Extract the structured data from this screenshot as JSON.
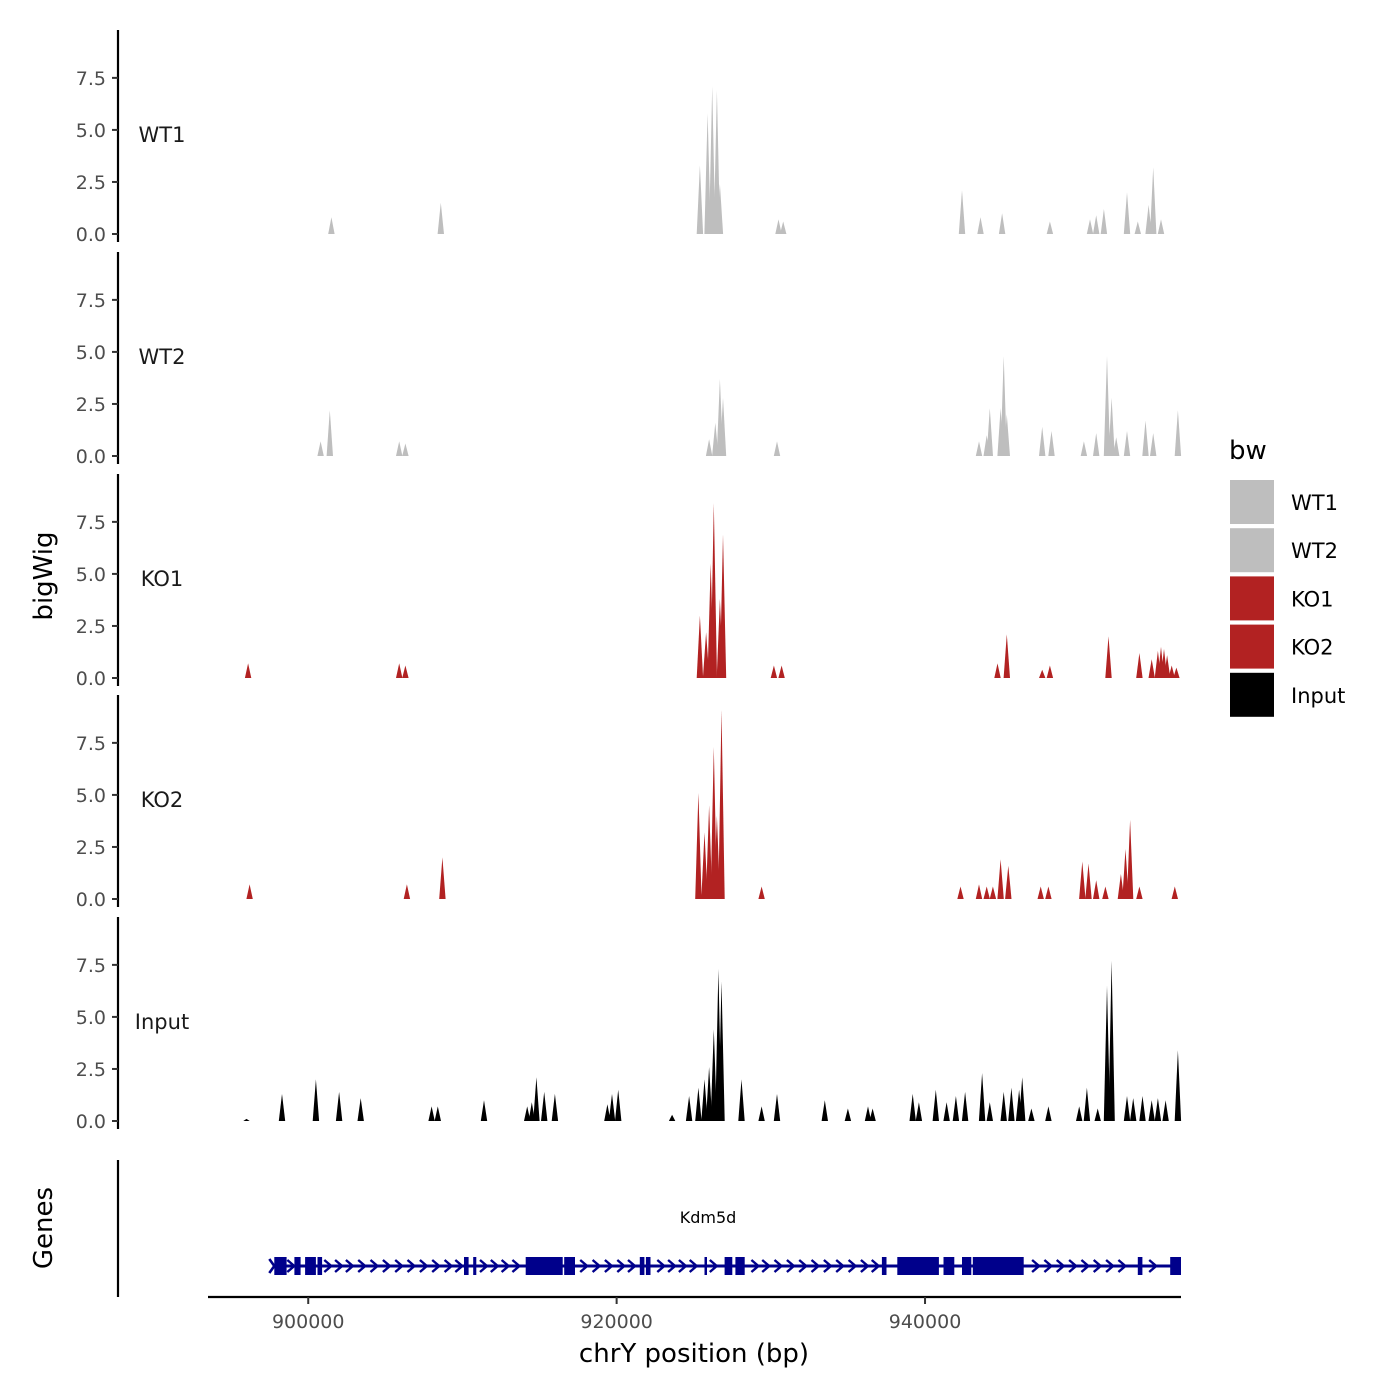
{
  "chart_data": {
    "type": "area",
    "xlabel": "chrY position (bp)",
    "ylabel": "bigWig",
    "genes_label": "Genes",
    "x_range": [
      893500,
      956600
    ],
    "x_ticks": [
      900000,
      920000,
      940000
    ],
    "x_tick_labels": [
      "900000",
      "920000",
      "940000"
    ],
    "y_range": [
      0,
      9.8
    ],
    "y_ticks": [
      0,
      2.5,
      5,
      7.5
    ],
    "y_tick_labels": [
      "0.0",
      "2.5",
      "5.0",
      "7.5"
    ],
    "legend": {
      "title": "bw",
      "entries": [
        {
          "label": "WT1",
          "color": "#BEBEBE"
        },
        {
          "label": "WT2",
          "color": "#BEBEBE"
        },
        {
          "label": "KO1",
          "color": "#B22222"
        },
        {
          "label": "KO2",
          "color": "#B22222"
        },
        {
          "label": "Input",
          "color": "#000000"
        }
      ]
    },
    "series": [
      {
        "name": "WT1",
        "color": "#BEBEBE",
        "peaks": [
          [
            901500,
            0.8
          ],
          [
            908600,
            1.5
          ],
          [
            925400,
            3.3
          ],
          [
            925900,
            5.8
          ],
          [
            926200,
            7.1
          ],
          [
            926500,
            6.9
          ],
          [
            926700,
            2.4
          ],
          [
            930500,
            0.7
          ],
          [
            930800,
            0.6
          ],
          [
            942400,
            2.1
          ],
          [
            943600,
            0.8
          ],
          [
            945000,
            1.0
          ],
          [
            948100,
            0.6
          ],
          [
            950700,
            0.7
          ],
          [
            951100,
            0.9
          ],
          [
            951600,
            1.2
          ],
          [
            953100,
            2.0
          ],
          [
            953800,
            0.6
          ],
          [
            954500,
            1.4
          ],
          [
            954800,
            3.2
          ],
          [
            955300,
            0.7
          ]
        ]
      },
      {
        "name": "WT2",
        "color": "#BEBEBE",
        "peaks": [
          [
            900800,
            0.7
          ],
          [
            901400,
            2.2
          ],
          [
            905900,
            0.7
          ],
          [
            906300,
            0.6
          ],
          [
            926000,
            0.8
          ],
          [
            926400,
            1.6
          ],
          [
            926700,
            3.7
          ],
          [
            926900,
            2.8
          ],
          [
            930400,
            0.7
          ],
          [
            943500,
            0.7
          ],
          [
            944000,
            1.0
          ],
          [
            944200,
            2.3
          ],
          [
            944900,
            2.3
          ],
          [
            945100,
            4.8
          ],
          [
            945300,
            2.0
          ],
          [
            947600,
            1.4
          ],
          [
            948200,
            1.2
          ],
          [
            950300,
            0.7
          ],
          [
            951100,
            1.1
          ],
          [
            951800,
            4.8
          ],
          [
            952100,
            2.8
          ],
          [
            952400,
            0.9
          ],
          [
            953100,
            1.2
          ],
          [
            954300,
            1.7
          ],
          [
            954800,
            1.1
          ],
          [
            956400,
            2.2
          ]
        ]
      },
      {
        "name": "KO1",
        "color": "#B22222",
        "peaks": [
          [
            896100,
            0.7
          ],
          [
            905900,
            0.7
          ],
          [
            906300,
            0.6
          ],
          [
            925400,
            3.0
          ],
          [
            925800,
            2.2
          ],
          [
            926100,
            5.5
          ],
          [
            926300,
            8.4
          ],
          [
            926700,
            3.8
          ],
          [
            926900,
            6.9
          ],
          [
            930200,
            0.6
          ],
          [
            930700,
            0.6
          ],
          [
            944700,
            0.7
          ],
          [
            945300,
            2.1
          ],
          [
            947600,
            0.4
          ],
          [
            948100,
            0.6
          ],
          [
            951900,
            2.0
          ],
          [
            953900,
            1.2
          ],
          [
            954700,
            0.9
          ],
          [
            955100,
            1.3
          ],
          [
            955300,
            1.5
          ],
          [
            955500,
            1.4
          ],
          [
            955700,
            1.1
          ],
          [
            956000,
            0.6
          ],
          [
            956300,
            0.5
          ]
        ]
      },
      {
        "name": "KO2",
        "color": "#B22222",
        "peaks": [
          [
            896200,
            0.7
          ],
          [
            906400,
            0.7
          ],
          [
            908700,
            2.0
          ],
          [
            925300,
            5.1
          ],
          [
            925700,
            3.2
          ],
          [
            926000,
            4.5
          ],
          [
            926300,
            7.3
          ],
          [
            926500,
            4.0
          ],
          [
            926800,
            9.1
          ],
          [
            929400,
            0.6
          ],
          [
            942300,
            0.6
          ],
          [
            943500,
            0.7
          ],
          [
            944000,
            0.6
          ],
          [
            944400,
            0.6
          ],
          [
            944900,
            1.9
          ],
          [
            945400,
            1.6
          ],
          [
            947500,
            0.6
          ],
          [
            948000,
            0.6
          ],
          [
            950200,
            1.8
          ],
          [
            950600,
            1.7
          ],
          [
            951100,
            0.9
          ],
          [
            951700,
            0.6
          ],
          [
            952700,
            1.2
          ],
          [
            953000,
            2.4
          ],
          [
            953300,
            3.8
          ],
          [
            953900,
            0.6
          ],
          [
            956200,
            0.6
          ]
        ]
      },
      {
        "name": "Input",
        "color": "#000000",
        "peaks": [
          [
            896000,
            0.1
          ],
          [
            898300,
            1.3
          ],
          [
            900500,
            2.0
          ],
          [
            902000,
            1.4
          ],
          [
            903400,
            1.1
          ],
          [
            908000,
            0.7
          ],
          [
            908400,
            0.7
          ],
          [
            911400,
            1.0
          ],
          [
            914200,
            0.7
          ],
          [
            914500,
            0.9
          ],
          [
            914800,
            2.1
          ],
          [
            915300,
            1.4
          ],
          [
            916000,
            1.3
          ],
          [
            919400,
            0.8
          ],
          [
            919700,
            1.3
          ],
          [
            920100,
            1.5
          ],
          [
            923600,
            0.3
          ],
          [
            924700,
            1.2
          ],
          [
            925300,
            1.6
          ],
          [
            925700,
            2.0
          ],
          [
            926000,
            2.6
          ],
          [
            926300,
            4.4
          ],
          [
            926600,
            7.3
          ],
          [
            926800,
            6.7
          ],
          [
            928100,
            2.0
          ],
          [
            929400,
            0.7
          ],
          [
            930400,
            1.3
          ],
          [
            933500,
            1.0
          ],
          [
            935000,
            0.6
          ],
          [
            936300,
            0.7
          ],
          [
            936600,
            0.6
          ],
          [
            939200,
            1.3
          ],
          [
            939600,
            0.9
          ],
          [
            940700,
            1.5
          ],
          [
            941400,
            0.9
          ],
          [
            942000,
            1.2
          ],
          [
            942600,
            1.4
          ],
          [
            943700,
            2.3
          ],
          [
            944200,
            0.9
          ],
          [
            945100,
            1.4
          ],
          [
            945600,
            1.6
          ],
          [
            946100,
            1.5
          ],
          [
            946300,
            2.1
          ],
          [
            946900,
            0.6
          ],
          [
            948000,
            0.7
          ],
          [
            950000,
            0.7
          ],
          [
            950500,
            1.6
          ],
          [
            951200,
            0.6
          ],
          [
            951800,
            6.5
          ],
          [
            952100,
            7.7
          ],
          [
            953100,
            1.2
          ],
          [
            953500,
            1.1
          ],
          [
            954100,
            1.2
          ],
          [
            954700,
            1.0
          ],
          [
            955100,
            1.1
          ],
          [
            955600,
            1.0
          ],
          [
            956400,
            3.4
          ]
        ]
      }
    ],
    "gene": {
      "name": "Kdm5d",
      "start": 897800,
      "end": 956600,
      "color": "#00008B",
      "exons": [
        [
          897800,
          898600
        ],
        [
          899100,
          899500
        ],
        [
          899800,
          900500
        ],
        [
          900600,
          900900
        ],
        [
          910100,
          910400
        ],
        [
          910700,
          910900
        ],
        [
          914100,
          916500
        ],
        [
          916600,
          917300
        ],
        [
          921500,
          921800
        ],
        [
          921900,
          922200
        ],
        [
          925700,
          925800
        ],
        [
          927000,
          927500
        ],
        [
          927700,
          928300
        ],
        [
          937200,
          937500
        ],
        [
          938200,
          940900
        ],
        [
          941200,
          941900
        ],
        [
          942400,
          943000
        ],
        [
          943100,
          946400
        ],
        [
          953800,
          954100
        ],
        [
          955900,
          956600
        ]
      ],
      "arrows": [
        898900,
        901300,
        902000,
        902700,
        903500,
        904300,
        905100,
        905900,
        906700,
        907500,
        908300,
        909100,
        909800,
        911400,
        912100,
        912800,
        913500,
        917900,
        918700,
        919500,
        920300,
        921000,
        922900,
        923600,
        924300,
        925000,
        926300,
        929000,
        929700,
        930500,
        931300,
        932100,
        932900,
        933700,
        934500,
        935300,
        936100,
        936800,
        947200,
        948000,
        948800,
        949600,
        950400,
        951200,
        952000,
        952800,
        954800
      ]
    }
  }
}
